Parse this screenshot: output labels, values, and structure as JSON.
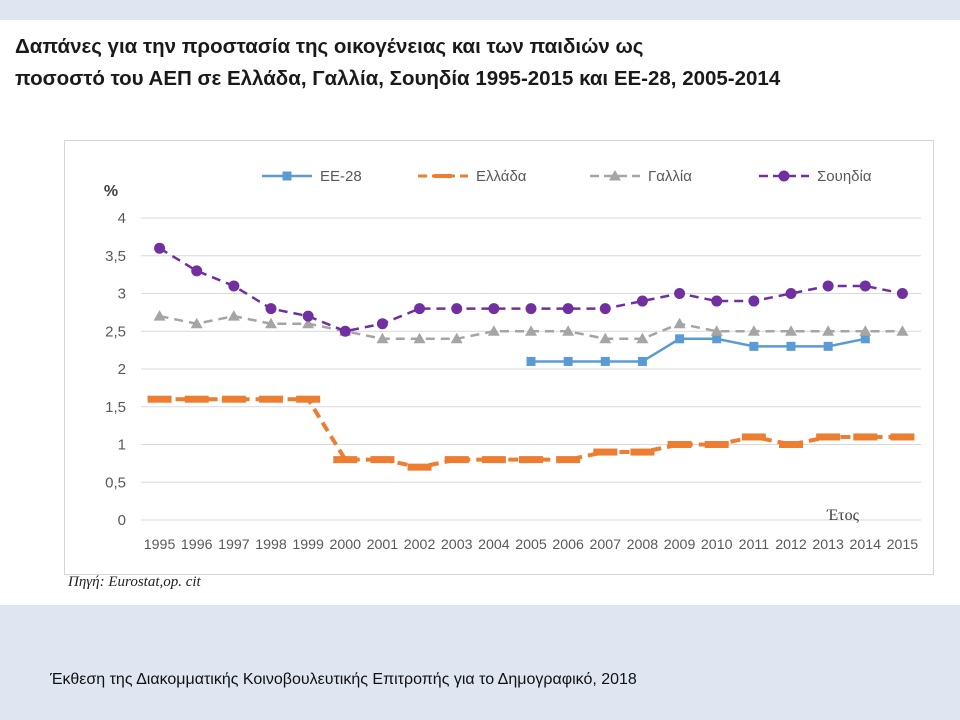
{
  "slide": {
    "title_line1": "Δαπάνες για την προστασία της οικογένειας και των παιδιών ως",
    "title_line2": "ποσοστό του ΑΕΠ σε Ελλάδα, Γαλλία, Σουηδία 1995-2015 και ΕΕ-28, 2005-2014",
    "source": "Πηγή: Eurostat,op. cit",
    "footer": "Έκθεση της Διακομματικής Κοινοβουλευτικής Επιτροπής για το Δημογραφικό, 2018"
  },
  "colors": {
    "eu28": "#5b9bd5",
    "greece": "#ed7d31",
    "france": "#a5a5a5",
    "sweden": "#7030a0",
    "gridline": "#d9d9d9",
    "axis_text": "#595959"
  },
  "chart_data": {
    "type": "line",
    "ylabel": "%",
    "xlabel": "Έτος",
    "ylim": [
      0,
      4
    ],
    "yticks": [
      0,
      0.5,
      1,
      1.5,
      2,
      2.5,
      3,
      3.5,
      4
    ],
    "ytick_labels": [
      "0",
      "0,5",
      "1",
      "1,5",
      "2",
      "2,5",
      "3",
      "3,5",
      "4"
    ],
    "grid": true,
    "legend_position": "top",
    "categories": [
      "1995",
      "1996",
      "1997",
      "1998",
      "1999",
      "2000",
      "2001",
      "2002",
      "2003",
      "2004",
      "2005",
      "2006",
      "2007",
      "2008",
      "2009",
      "2010",
      "2011",
      "2012",
      "2013",
      "2014",
      "2015"
    ],
    "series": [
      {
        "name": "ΕΕ-28",
        "color": "#5b9bd5",
        "line_style": "solid",
        "marker": "square",
        "values": [
          null,
          null,
          null,
          null,
          null,
          null,
          null,
          null,
          null,
          null,
          2.1,
          2.1,
          2.1,
          2.1,
          2.4,
          2.4,
          2.3,
          2.3,
          2.3,
          2.4,
          null
        ]
      },
      {
        "name": "Ελλάδα",
        "color": "#ed7d31",
        "line_style": "dashed",
        "marker": "dash",
        "values": [
          1.6,
          1.6,
          1.6,
          1.6,
          1.6,
          0.8,
          0.8,
          0.7,
          0.8,
          0.8,
          0.8,
          0.8,
          0.9,
          0.9,
          1.0,
          1.0,
          1.1,
          1.0,
          1.1,
          1.1,
          1.1
        ]
      },
      {
        "name": "Γαλλία",
        "color": "#a5a5a5",
        "line_style": "dashed",
        "marker": "triangle",
        "values": [
          2.7,
          2.6,
          2.7,
          2.6,
          2.6,
          2.5,
          2.4,
          2.4,
          2.4,
          2.5,
          2.5,
          2.5,
          2.4,
          2.4,
          2.6,
          2.5,
          2.5,
          2.5,
          2.5,
          2.5,
          2.5
        ]
      },
      {
        "name": "Σουηδία",
        "color": "#7030a0",
        "line_style": "dashed",
        "marker": "circle",
        "values": [
          3.6,
          3.3,
          3.1,
          2.8,
          2.7,
          2.5,
          2.6,
          2.8,
          2.8,
          2.8,
          2.8,
          2.8,
          2.8,
          2.9,
          3.0,
          2.9,
          2.9,
          3.0,
          3.1,
          3.1,
          3.0
        ]
      }
    ]
  }
}
